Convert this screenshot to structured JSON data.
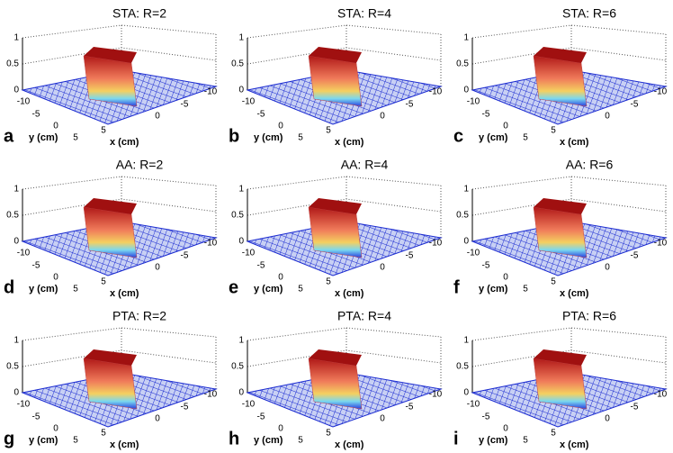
{
  "figure": {
    "panels": [
      {
        "title": "STA: R=2",
        "letter": "a",
        "zticks": [
          "1",
          "0.5",
          "0"
        ],
        "yticks": [
          "-10",
          "-5",
          "0",
          "5"
        ],
        "ylabel": "y (cm)",
        "xticks": [
          "5",
          "0",
          "-5",
          "-10"
        ],
        "xlabel": "x (cm)"
      },
      {
        "title": "STA: R=4",
        "letter": "b",
        "zticks": [
          "1",
          "0.5",
          "0"
        ],
        "yticks": [
          "-10",
          "-5",
          "0",
          "5"
        ],
        "ylabel": "y (cm)",
        "xticks": [
          "5",
          "0",
          "-5",
          "-10"
        ],
        "xlabel": "x (cm)"
      },
      {
        "title": "STA: R=6",
        "letter": "c",
        "zticks": [
          "1",
          "0.5",
          "0"
        ],
        "yticks": [
          "-10",
          "-5",
          "0",
          "5"
        ],
        "ylabel": "y (cm)",
        "xticks": [
          "5",
          "0",
          "-5",
          "-10"
        ],
        "xlabel": "x (cm)"
      },
      {
        "title": "AA: R=2",
        "letter": "d",
        "zticks": [
          "1",
          "0.5",
          "0"
        ],
        "yticks": [
          "-10",
          "-5",
          "0",
          "5"
        ],
        "ylabel": "y (cm)",
        "xticks": [
          "5",
          "0",
          "-5",
          "-10"
        ],
        "xlabel": "x (cm)"
      },
      {
        "title": "AA: R=4",
        "letter": "e",
        "zticks": [
          "1",
          "0.5",
          "0"
        ],
        "yticks": [
          "-10",
          "-5",
          "0",
          "5"
        ],
        "ylabel": "y (cm)",
        "xticks": [
          "5",
          "0",
          "-5",
          "-10"
        ],
        "xlabel": "x (cm)"
      },
      {
        "title": "AA: R=6",
        "letter": "f",
        "zticks": [
          "1",
          "0.5",
          "0"
        ],
        "yticks": [
          "-10",
          "-5",
          "0",
          "5"
        ],
        "ylabel": "y (cm)",
        "xticks": [
          "5",
          "0",
          "-5",
          "-10"
        ],
        "xlabel": "x (cm)"
      },
      {
        "title": "PTA: R=2",
        "letter": "g",
        "zticks": [
          "1",
          "0.5",
          "0"
        ],
        "yticks": [
          "-10",
          "-5",
          "0",
          "5"
        ],
        "ylabel": "y (cm)",
        "xticks": [
          "5",
          "0",
          "-5",
          "-10"
        ],
        "xlabel": "x (cm)"
      },
      {
        "title": "PTA: R=4",
        "letter": "h",
        "zticks": [
          "1",
          "0.5",
          "0"
        ],
        "yticks": [
          "-10",
          "-5",
          "0",
          "5"
        ],
        "ylabel": "y (cm)",
        "xticks": [
          "5",
          "0",
          "-5",
          "-10"
        ],
        "xlabel": "x (cm)"
      },
      {
        "title": "PTA: R=6",
        "letter": "i",
        "zticks": [
          "1",
          "0.5",
          "0"
        ],
        "yticks": [
          "-10",
          "-5",
          "0",
          "5"
        ],
        "ylabel": "y (cm)",
        "xticks": [
          "5",
          "0",
          "-5",
          "-10"
        ],
        "xlabel": "x (cm)"
      }
    ]
  }
}
